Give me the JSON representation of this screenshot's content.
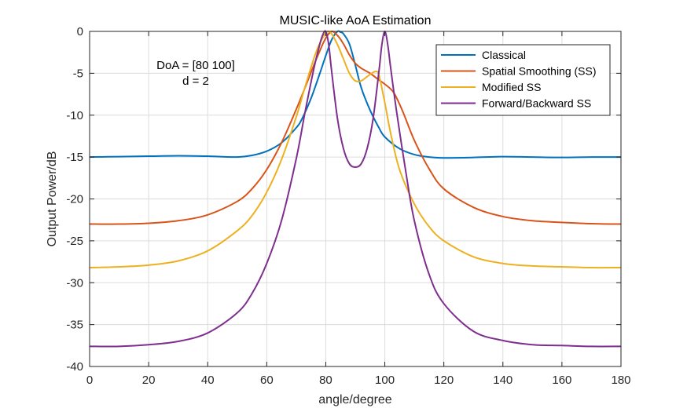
{
  "chart_data": {
    "type": "line",
    "title": "MUSIC-like AoA Estimation",
    "xlabel": "angle/degree",
    "ylabel": "Output Power/dB",
    "xlim": [
      0,
      180
    ],
    "ylim": [
      -40,
      0
    ],
    "xticks": [
      0,
      20,
      40,
      60,
      80,
      100,
      120,
      140,
      160,
      180
    ],
    "yticks": [
      0,
      -5,
      -10,
      -15,
      -20,
      -25,
      -30,
      -35,
      -40
    ],
    "grid": true,
    "legend_position": "top-right",
    "annotation": [
      "DoA = [80  100]",
      "d = 2"
    ],
    "series": [
      {
        "name": "Classical",
        "color": "#0072BD",
        "x": [
          0,
          10,
          20,
          30,
          40,
          50,
          55,
          60,
          65,
          70,
          72,
          75,
          78,
          80,
          82,
          84,
          85,
          86,
          88,
          90,
          92,
          95,
          98,
          100,
          105,
          110,
          115,
          120,
          130,
          140,
          150,
          160,
          170,
          180
        ],
        "y": [
          -15.0,
          -14.95,
          -14.9,
          -14.85,
          -14.9,
          -15.0,
          -14.8,
          -14.3,
          -13.3,
          -11.5,
          -10.4,
          -8.0,
          -5.0,
          -2.9,
          -1.0,
          0.0,
          -0.1,
          -0.3,
          -1.5,
          -4.0,
          -6.7,
          -9.4,
          -11.5,
          -12.6,
          -14.0,
          -14.7,
          -15.0,
          -15.1,
          -15.05,
          -14.95,
          -15.0,
          -15.05,
          -15.0,
          -15.0
        ]
      },
      {
        "name": "Spatial Smoothing (SS)",
        "color": "#D95319",
        "x": [
          0,
          10,
          20,
          30,
          40,
          50,
          55,
          60,
          65,
          70,
          73,
          76,
          78,
          80,
          82,
          84,
          86,
          88,
          90,
          92,
          95,
          98,
          100,
          103,
          106,
          110,
          115,
          120,
          130,
          140,
          150,
          160,
          170,
          180
        ],
        "y": [
          -23.0,
          -23.0,
          -22.9,
          -22.6,
          -21.9,
          -20.3,
          -18.8,
          -16.5,
          -13.3,
          -9.3,
          -6.7,
          -4.0,
          -2.3,
          -0.8,
          0.0,
          -0.5,
          -1.5,
          -2.8,
          -3.8,
          -4.4,
          -5.0,
          -5.8,
          -6.3,
          -7.3,
          -9.5,
          -13.0,
          -16.4,
          -18.8,
          -21.0,
          -22.1,
          -22.6,
          -22.8,
          -22.95,
          -23.0
        ]
      },
      {
        "name": "Modified SS",
        "color": "#EDB120",
        "x": [
          0,
          10,
          20,
          30,
          40,
          50,
          55,
          60,
          65,
          70,
          73,
          76,
          78,
          80,
          81,
          82,
          84,
          86,
          88,
          90,
          92,
          94,
          96,
          97,
          98,
          100,
          102,
          105,
          110,
          115,
          120,
          130,
          140,
          150,
          160,
          170,
          180
        ],
        "y": [
          -28.2,
          -28.1,
          -27.9,
          -27.4,
          -26.2,
          -23.8,
          -22.0,
          -19.2,
          -15.3,
          -10.2,
          -6.6,
          -3.2,
          -1.4,
          -0.2,
          0.0,
          -0.3,
          -1.6,
          -3.3,
          -5.0,
          -5.9,
          -5.9,
          -5.4,
          -4.9,
          -4.8,
          -5.2,
          -8.5,
          -12.2,
          -16.5,
          -20.6,
          -23.3,
          -25.0,
          -26.9,
          -27.7,
          -28.0,
          -28.1,
          -28.2,
          -28.2
        ]
      },
      {
        "name": "Forward/Backward SS",
        "color": "#7E2F8E",
        "x": [
          0,
          10,
          20,
          30,
          40,
          50,
          55,
          60,
          65,
          70,
          73,
          76,
          78,
          79,
          80,
          81,
          82,
          84,
          86,
          88,
          90,
          92,
          94,
          96,
          98,
          99,
          100,
          101,
          102,
          104,
          107,
          110,
          115,
          120,
          130,
          140,
          150,
          160,
          170,
          180
        ],
        "y": [
          -37.6,
          -37.6,
          -37.4,
          -37.0,
          -36.0,
          -33.6,
          -31.3,
          -27.7,
          -22.6,
          -15.2,
          -9.6,
          -4.4,
          -1.5,
          -0.4,
          0.0,
          -1.6,
          -4.8,
          -10.5,
          -14.0,
          -15.8,
          -16.2,
          -15.8,
          -14.0,
          -10.5,
          -4.8,
          -1.6,
          0.0,
          -1.6,
          -4.4,
          -9.6,
          -16.5,
          -22.6,
          -29.0,
          -32.5,
          -35.8,
          -36.9,
          -37.4,
          -37.5,
          -37.6,
          -37.6
        ]
      }
    ]
  }
}
